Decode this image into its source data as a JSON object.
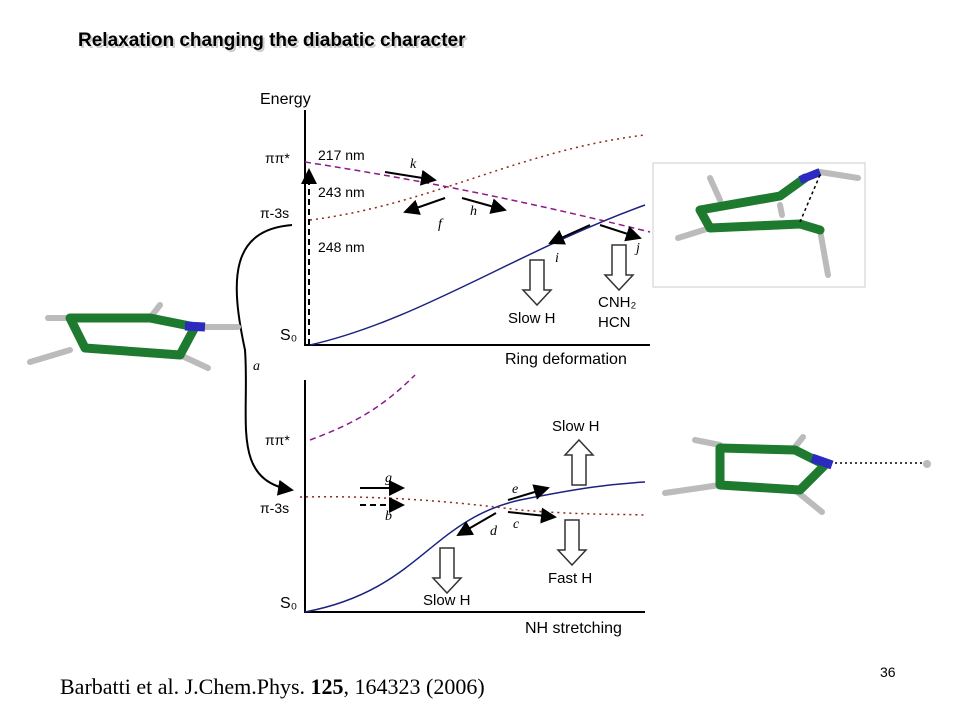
{
  "title": "Relaxation changing the diabatic character",
  "top_panel": {
    "y_axis_label": "Energy",
    "states": [
      "ππ*",
      "π-3s"
    ],
    "ground_state": "S₀",
    "wavelengths": [
      "217 nm",
      "243 nm",
      "248 nm"
    ],
    "x_axis_label": "Ring deformation",
    "paths": [
      "k",
      "f",
      "h",
      "i",
      "j"
    ],
    "outcomes": [
      "Slow H",
      "CNH₂",
      "HCN"
    ]
  },
  "transition_label": "a",
  "bottom_panel": {
    "states": [
      "ππ*",
      "π-3s"
    ],
    "ground_state": "S₀",
    "x_axis_label": "NH stretching",
    "paths": [
      "g",
      "b",
      "e",
      "c",
      "d"
    ],
    "outcomes": [
      "Slow H",
      "Fast H",
      "Slow H"
    ]
  },
  "citation": {
    "authors": "Barbatti et al. J.Chem.Phys. ",
    "volume": "125",
    "rest": ", 164323 (2006)"
  },
  "page_number": "36"
}
